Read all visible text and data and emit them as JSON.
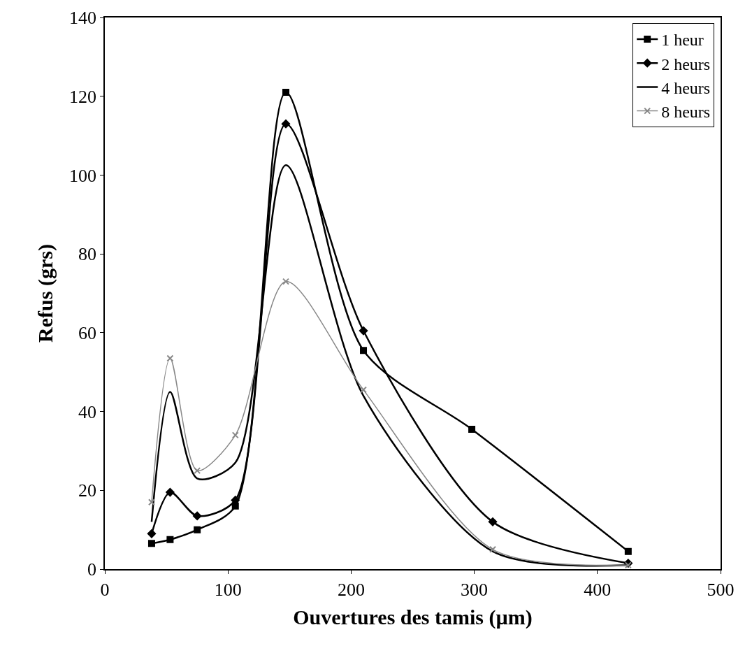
{
  "chart_data": {
    "type": "line",
    "xlabel": "Ouvertures des tamis (µm)",
    "ylabel": "Refus (grs)",
    "xlim": [
      0,
      500
    ],
    "xticks": [
      0,
      100,
      200,
      300,
      400,
      500
    ],
    "ylim": [
      0,
      140
    ],
    "yticks": [
      0,
      20,
      40,
      60,
      80,
      100,
      120,
      140
    ],
    "legend": "top right",
    "series": [
      {
        "name": "1 heur",
        "color": "#000000",
        "marker": "square",
        "x": [
          38,
          53,
          75,
          106,
          147,
          210,
          298,
          425
        ],
        "values": [
          6.5,
          7.5,
          10,
          16,
          121,
          55.5,
          35.5,
          4.5
        ]
      },
      {
        "name": "2 heurs",
        "color": "#000000",
        "marker": "diamond",
        "x": [
          38,
          53,
          75,
          106,
          147,
          210,
          315,
          425
        ],
        "values": [
          9,
          19.5,
          13.5,
          17.5,
          113,
          60.5,
          12,
          1.5
        ]
      },
      {
        "name": "4 heurs",
        "color": "#000000",
        "marker": "none",
        "x": [
          38,
          53,
          75,
          106,
          147,
          210,
          315,
          425
        ],
        "values": [
          12,
          45,
          23,
          27,
          102.5,
          44,
          4.5,
          1
        ]
      },
      {
        "name": "8 heurs",
        "color": "#888888",
        "marker": "cross",
        "x": [
          38,
          53,
          75,
          106,
          147,
          210,
          315,
          425
        ],
        "values": [
          17,
          53.5,
          25,
          34,
          73,
          45.5,
          5,
          1
        ]
      }
    ]
  }
}
